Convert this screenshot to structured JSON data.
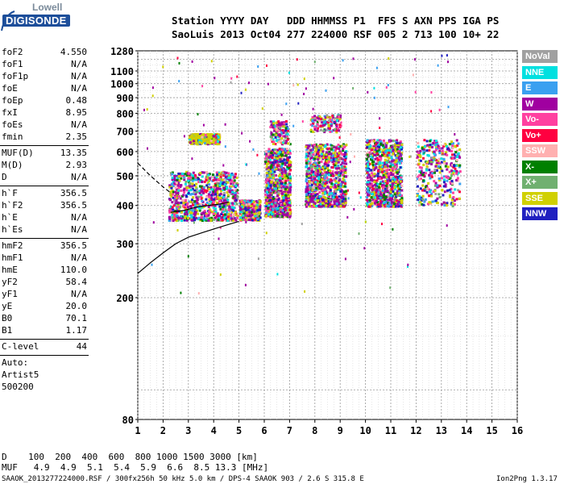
{
  "logo": {
    "top": "Lowell",
    "bottom": "DIGISONDE"
  },
  "header": {
    "line1": "Station YYYY DAY   DDD HHMMSS P1  FFS S AXN PPS IGA PS",
    "line2": "SaoLuis 2013 Oct04 277 224000 RSF 005 2 713 100 10+ 22"
  },
  "params_group1": [
    {
      "name": "foF2",
      "value": "4.550"
    },
    {
      "name": "foF1",
      "value": "N/A"
    },
    {
      "name": "foF1p",
      "value": "N/A"
    },
    {
      "name": "foE",
      "value": "N/A"
    },
    {
      "name": "foEp",
      "value": "0.48"
    },
    {
      "name": "fxI",
      "value": "8.95"
    },
    {
      "name": "foEs",
      "value": "N/A"
    },
    {
      "name": "fmin",
      "value": "2.35"
    }
  ],
  "params_group2": [
    {
      "name": "MUF(D)",
      "value": "13.35"
    },
    {
      "name": "M(D)",
      "value": "2.93"
    },
    {
      "name": "D",
      "value": "N/A"
    }
  ],
  "params_group3": [
    {
      "name": "h`F",
      "value": "356.5"
    },
    {
      "name": "h`F2",
      "value": "356.5"
    },
    {
      "name": "h`E",
      "value": "N/A"
    },
    {
      "name": "h`Es",
      "value": "N/A"
    }
  ],
  "params_group4": [
    {
      "name": "hmF2",
      "value": "356.5"
    },
    {
      "name": "hmF1",
      "value": "N/A"
    },
    {
      "name": "hmE",
      "value": "110.0"
    },
    {
      "name": "yF2",
      "value": "58.4"
    },
    {
      "name": "yF1",
      "value": "N/A"
    },
    {
      "name": "yE",
      "value": "20.0"
    },
    {
      "name": "B0",
      "value": "70.1"
    },
    {
      "name": "B1",
      "value": "1.17"
    }
  ],
  "clevel": {
    "name": "C-level",
    "value": "44"
  },
  "auto": {
    "line1": "Auto:",
    "line2": "Artist5",
    "line3": "500200"
  },
  "legend": [
    {
      "label": "NoVal",
      "color": "#a0a0a0"
    },
    {
      "label": "NNE",
      "color": "#00e0e0"
    },
    {
      "label": "E",
      "color": "#3aa0f0"
    },
    {
      "label": "W",
      "color": "#a000a0"
    },
    {
      "label": "Vo-",
      "color": "#ff40a0"
    },
    {
      "label": "Vo+",
      "color": "#ff0040"
    },
    {
      "label": "SSW",
      "color": "#ffb0b0"
    },
    {
      "label": "X-",
      "color": "#008000"
    },
    {
      "label": "X+",
      "color": "#70b070"
    },
    {
      "label": "SSE",
      "color": "#d0d000"
    },
    {
      "label": "NNW",
      "color": "#2020c0"
    }
  ],
  "footer": {
    "d_row": "D    100  200  400  600  800 1000 1500 3000 [km]",
    "muf_row": "MUF   4.9  4.9  5.1  5.4  5.9  6.6  8.5 13.3 [MHz]",
    "bottom_left": "SAAOK_2013277224000.RSF / 300fx256h 50 kHz 5.0 km / DPS-4 SAAOK 903 / 2.6 S 315.8 E",
    "bottom_right": "Ion2Png 1.3.17"
  },
  "chart_data": {
    "type": "scatter",
    "title": "",
    "xlabel": "",
    "ylabel": "",
    "xlim": [
      1,
      16
    ],
    "ylim": [
      80,
      1280
    ],
    "y_scale": "log",
    "x_ticks": [
      1,
      2,
      3,
      4,
      5,
      6,
      7,
      8,
      9,
      10,
      11,
      12,
      13,
      14,
      15,
      16
    ],
    "y_ticks": [
      80,
      200,
      300,
      400,
      500,
      600,
      700,
      800,
      900,
      1000,
      1100,
      1280
    ],
    "grid": true,
    "legend_position": "right",
    "series": [
      {
        "name": "W",
        "description_points": [
          [
            2.5,
            400
          ],
          [
            3,
            460
          ],
          [
            3.5,
            470
          ],
          [
            4,
            500
          ],
          [
            4.5,
            420
          ],
          [
            6.5,
            500
          ],
          [
            8,
            550
          ],
          [
            9,
            500
          ],
          [
            11,
            520
          ]
        ]
      },
      {
        "name": "SSE",
        "description_points": [
          [
            2.5,
            380
          ],
          [
            3,
            370
          ],
          [
            3.5,
            390
          ],
          [
            4,
            660
          ],
          [
            5,
            380
          ],
          [
            6.5,
            400
          ],
          [
            8.5,
            420
          ]
        ]
      }
    ],
    "clusters": [
      {
        "x": [
          2.2,
          4.9
        ],
        "y": [
          360,
          520
        ],
        "density": "high"
      },
      {
        "x": [
          3.0,
          4.2
        ],
        "y": [
          640,
          690
        ],
        "density": "medium",
        "dominant": "SSE"
      },
      {
        "x": [
          5.0,
          5.8
        ],
        "y": [
          360,
          420
        ],
        "density": "medium"
      },
      {
        "x": [
          6.0,
          7.0
        ],
        "y": [
          370,
          620
        ],
        "density": "high"
      },
      {
        "x": [
          6.2,
          6.9
        ],
        "y": [
          640,
          760
        ],
        "density": "low"
      },
      {
        "x": [
          7.6,
          9.2
        ],
        "y": [
          400,
          640
        ],
        "density": "high"
      },
      {
        "x": [
          7.8,
          9.0
        ],
        "y": [
          700,
          800
        ],
        "density": "low"
      },
      {
        "x": [
          10.0,
          11.4
        ],
        "y": [
          400,
          660
        ],
        "density": "high"
      },
      {
        "x": [
          12.0,
          13.7
        ],
        "y": [
          400,
          660
        ],
        "density": "medium"
      }
    ],
    "trace_virtual_height": [
      [
        1,
        240
      ],
      [
        1.5,
        260
      ],
      [
        2,
        280
      ],
      [
        2.5,
        300
      ],
      [
        3,
        315
      ],
      [
        3.5,
        325
      ],
      [
        4,
        335
      ],
      [
        4.5,
        345
      ],
      [
        5,
        355
      ]
    ],
    "trace_dashed": [
      [
        1,
        550
      ],
      [
        1.5,
        500
      ],
      [
        2,
        460
      ],
      [
        2.3,
        440
      ]
    ],
    "trace_profile": [
      [
        2.3,
        380
      ],
      [
        2.8,
        385
      ],
      [
        3.3,
        395
      ],
      [
        3.8,
        400
      ],
      [
        4.3,
        405
      ],
      [
        4.6,
        410
      ]
    ]
  }
}
